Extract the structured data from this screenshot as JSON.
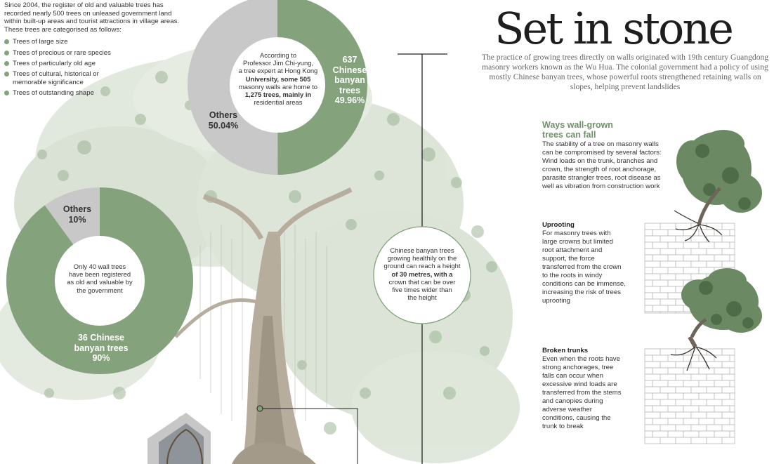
{
  "title": "Set in stone",
  "deck": "The practice of growing trees directly on walls originated with 19th century Guangdong masonry workers known as the Wu Hua. The colonial government had a policy of using mostly Chinese banyan trees, whose powerful roots strengthened retaining walls on slopes, helping prevent landslides",
  "intro": {
    "text": "Since 2004, the register of old and valuable trees has recorded nearly 500 trees on unleased government land within built-up areas and tourist attractions in village areas. These trees are categorised as follows:",
    "categories": [
      "Trees of large size",
      "Trees of precious or rare species",
      "Trees of particularly old age",
      "Trees of cultural, historical or memorable significance",
      "Trees of outstanding shape"
    ]
  },
  "donut_top": {
    "center_text": [
      "According to",
      "Professor Jim Chi-yung,",
      "a tree expert at Hong Kong",
      "University, some 505",
      "masonry walls are home to",
      "1,275 trees, mainly in",
      "residential areas"
    ],
    "slice_banyan": [
      "637",
      "Chinese",
      "banyan",
      "trees",
      "49.96%"
    ],
    "slice_others": [
      "Others",
      "50.04%"
    ]
  },
  "donut_left": {
    "center_text": [
      "Only 40 wall trees",
      "have been registered",
      "as old and valuable by",
      "the government"
    ],
    "slice_banyan": [
      "36 Chinese",
      "banyan trees",
      "90%"
    ],
    "slice_others": [
      "Others",
      "10%"
    ]
  },
  "height_note": [
    "Chinese banyan trees",
    "growing healthily on the",
    "ground can reach a height",
    "of 30 metres, with a",
    "crown that can be over",
    "five times wider than",
    "the height"
  ],
  "ways": {
    "heading": [
      "Ways wall-grown",
      "trees can fall"
    ],
    "intro": [
      "The stability of a tree on masonry walls",
      "can be compromised by several factors:",
      "Wind loads on the trunk, branches and",
      "crown, the strength of root anchorage,",
      "parasite strangler trees, root disease as",
      "well as vibration from construction work"
    ],
    "uprooting": {
      "title": "Uprooting",
      "text": [
        "For masonry trees with",
        "large crowns but limited",
        "root attachment and",
        "support, the force",
        "transferred from the crown",
        "to the roots in windy",
        "conditions can be immense,",
        "increasing the risk of trees",
        "uprooting"
      ]
    },
    "broken": {
      "title": "Broken trunks",
      "text": [
        "Even when the roots have",
        "strong anchorages, tree",
        "falls can occur when",
        "excessive wind loads are",
        "transferred from the stems",
        "and canopies during",
        "adverse weather",
        "conditions, causing the",
        "trunk to break"
      ]
    }
  },
  "chart_data": [
    {
      "type": "pie",
      "categories": [
        "Chinese banyan trees",
        "Others"
      ],
      "values": [
        49.96,
        50.04
      ],
      "counts": [
        637
      ],
      "total_trees": 1275,
      "masonry_walls": 505
    },
    {
      "type": "pie",
      "categories": [
        "Chinese banyan trees",
        "Others"
      ],
      "values": [
        90,
        10
      ],
      "counts": [
        36
      ],
      "total_trees": 40
    }
  ],
  "colors": {
    "banyan": "#84a27c",
    "others": "#c8c8c8",
    "foliage": "#a8bca0",
    "dark_foliage": "#5f7d58",
    "trunk": "#a39a8a",
    "line": "#222222"
  }
}
